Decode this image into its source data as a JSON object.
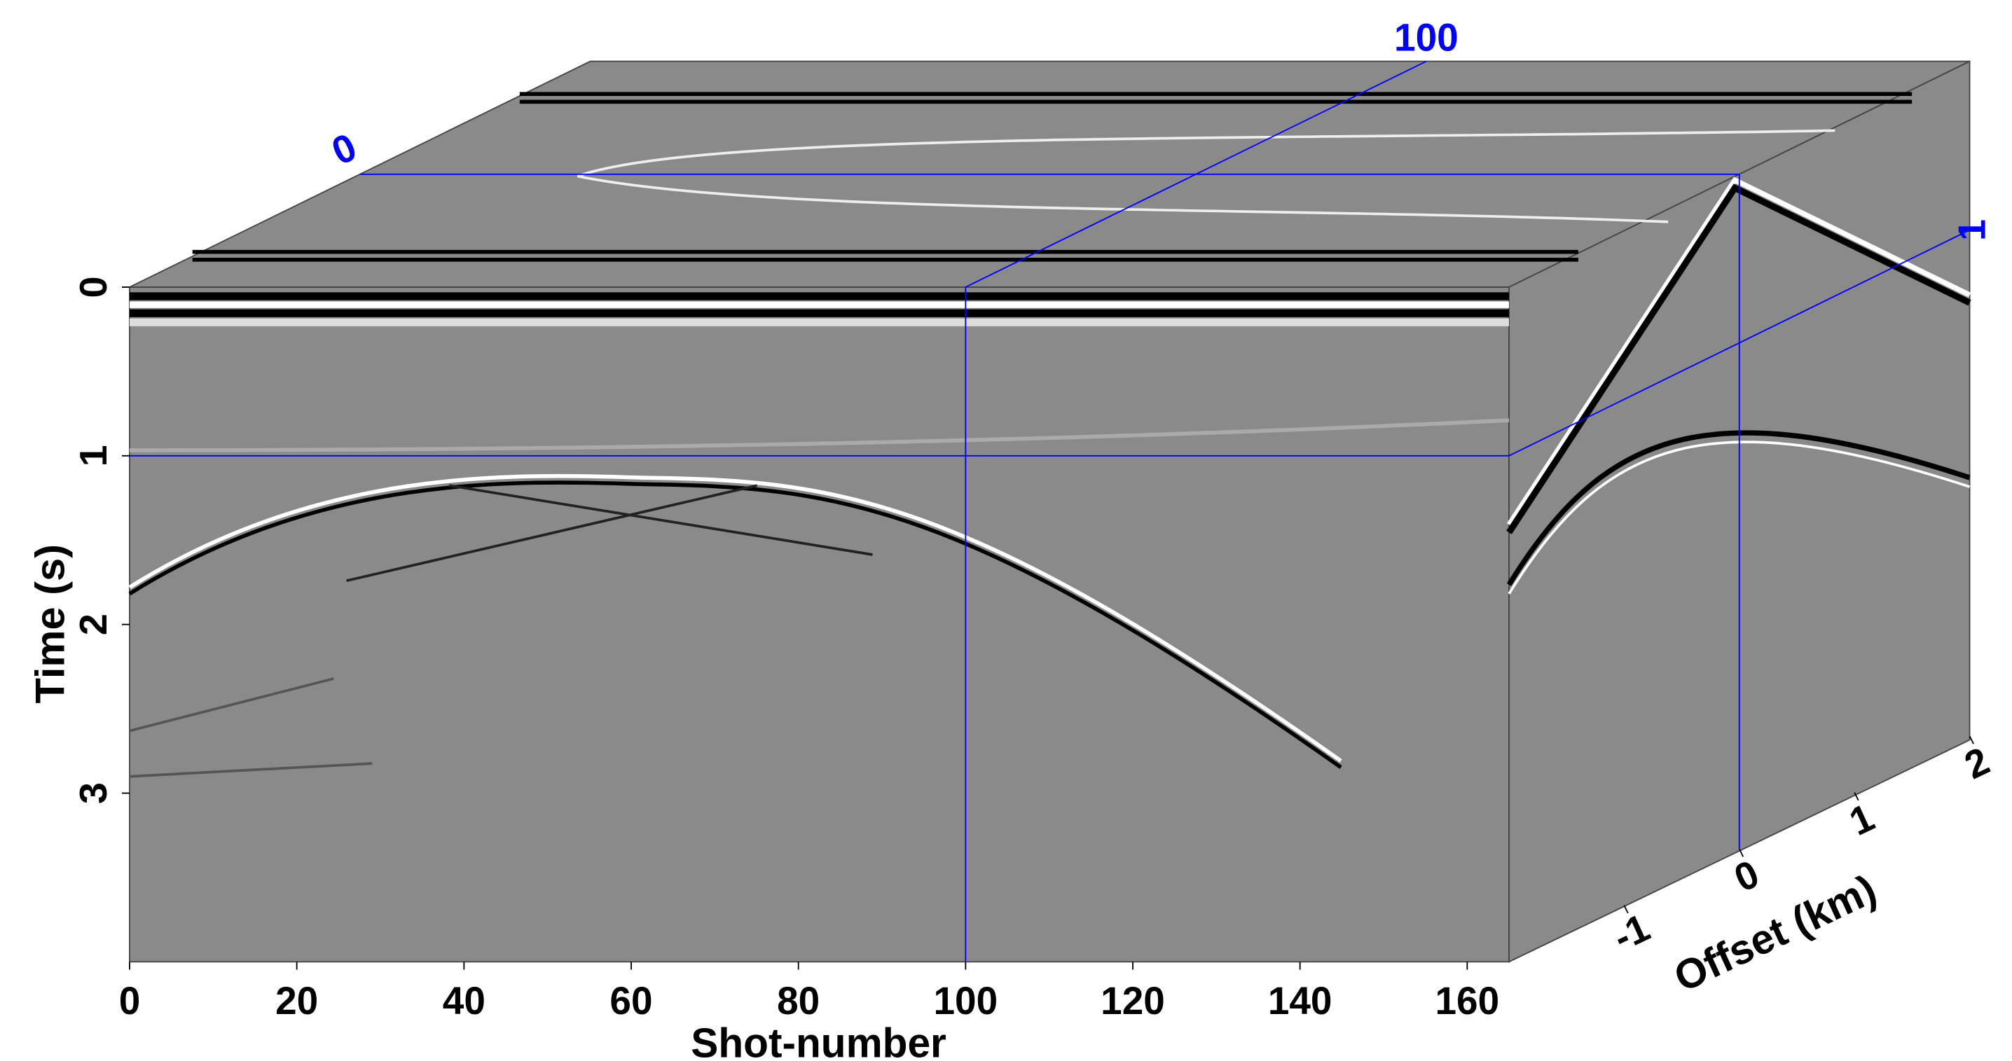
{
  "chart_data": {
    "type": "cube",
    "xlabel": "Shot-number",
    "ylabel": "Time (s)",
    "zlabel": "Offset (km)",
    "xlim": [
      0,
      165
    ],
    "xticks": [
      0,
      20,
      40,
      60,
      80,
      100,
      120,
      140,
      160
    ],
    "ylim": [
      0,
      4
    ],
    "yticks": [
      0,
      1,
      2,
      3
    ],
    "zlim": [
      -2,
      2
    ],
    "zticks": [
      -1,
      0,
      1,
      2
    ],
    "slices": {
      "x": 100,
      "y": 1,
      "z": 0
    },
    "slice_color": "#0000ff",
    "face_color": "#8a8a8a"
  }
}
